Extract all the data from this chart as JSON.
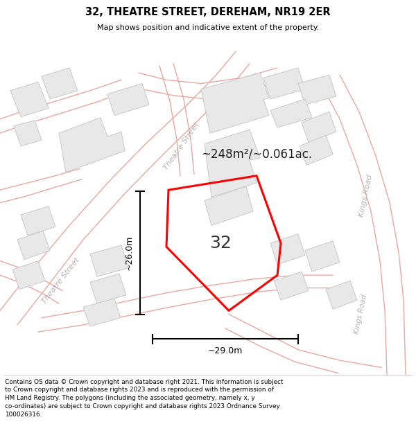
{
  "title": "32, THEATRE STREET, DEREHAM, NR19 2ER",
  "subtitle": "Map shows position and indicative extent of the property.",
  "area_text": "~248m²/~0.061ac.",
  "number_label": "32",
  "dim_horizontal": "~29.0m",
  "dim_vertical": "~26.0m",
  "footer": "Contains OS data © Crown copyright and database right 2021. This information is subject to Crown copyright and database rights 2023 and is reproduced with the permission of HM Land Registry. The polygons (including the associated geometry, namely x, y co-ordinates) are subject to Crown copyright and database rights 2023 Ordnance Survey 100026316.",
  "bg_color": "#ffffff",
  "map_bg": "#ffffff",
  "building_fill": "#e8e8e8",
  "building_edge": "#c8c8c8",
  "road_line_color": "#e8a8a0",
  "property_color": "#ff0000",
  "street_label_color": "#b8b0b0",
  "dim_color": "#000000",
  "title_color": "#000000",
  "footer_color": "#000000",
  "area_text_color": "#1a1a1a",
  "number_color": "#333333"
}
